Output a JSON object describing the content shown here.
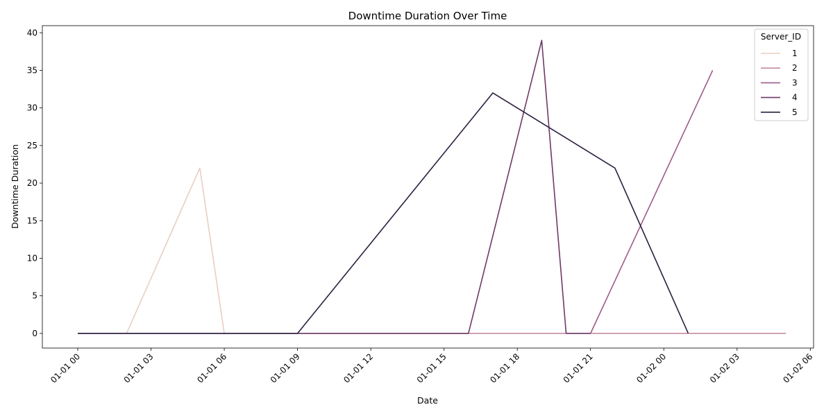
{
  "chart_data": {
    "type": "line",
    "title": "Downtime Duration Over Time",
    "xlabel": "Date",
    "ylabel": "Downtime Duration",
    "x_ticks": [
      "01-01 00",
      "01-01 03",
      "01-01 06",
      "01-01 09",
      "01-01 12",
      "01-01 15",
      "01-01 18",
      "01-01 21",
      "01-02 00",
      "01-02 03",
      "01-02 06"
    ],
    "x_tick_values": [
      "2000-01-01 00:00",
      "2000-01-01 03:00",
      "2000-01-01 06:00",
      "2000-01-01 09:00",
      "2000-01-01 12:00",
      "2000-01-01 15:00",
      "2000-01-01 18:00",
      "2000-01-01 21:00",
      "2000-01-02 00:00",
      "2000-01-02 03:00",
      "2000-01-02 06:00"
    ],
    "xlim": [
      "2000-01-01 -01:27",
      "2000-01-02 06:08"
    ],
    "y_ticks": [
      0,
      5,
      10,
      15,
      20,
      25,
      30,
      35,
      40
    ],
    "ylim": [
      -1.95,
      40.95
    ],
    "grid": false,
    "legend": {
      "title": "Server_ID",
      "placement": "top-right"
    },
    "series": [
      {
        "name": "1",
        "color": "#ebcdc4",
        "points": [
          [
            "2000-01-01 02:00",
            0
          ],
          [
            "2000-01-01 05:00",
            22
          ],
          [
            "2000-01-01 06:00",
            0
          ],
          [
            "2000-01-01 09:00",
            0
          ]
        ]
      },
      {
        "name": "2",
        "color": "#c38ba1",
        "points": [
          [
            "2000-01-01 09:00",
            0
          ],
          [
            "2000-01-02 05:00",
            0
          ]
        ]
      },
      {
        "name": "3",
        "color": "#9c5b8a",
        "points": [
          [
            "2000-01-01 21:00",
            0
          ],
          [
            "2000-01-02 02:00",
            35
          ]
        ]
      },
      {
        "name": "4",
        "color": "#6c3966",
        "points": [
          [
            "2000-01-01 00:00",
            0
          ],
          [
            "2000-01-01 16:00",
            0
          ],
          [
            "2000-01-01 19:00",
            39
          ],
          [
            "2000-01-01 20:00",
            0
          ],
          [
            "2000-01-01 21:00",
            0
          ]
        ]
      },
      {
        "name": "5",
        "color": "#2c1d3e",
        "points": [
          [
            "2000-01-01 00:00",
            0
          ],
          [
            "2000-01-01 09:00",
            0
          ],
          [
            "2000-01-01 17:00",
            32
          ],
          [
            "2000-01-01 22:00",
            22
          ],
          [
            "2000-01-02 01:00",
            0
          ]
        ]
      }
    ]
  }
}
